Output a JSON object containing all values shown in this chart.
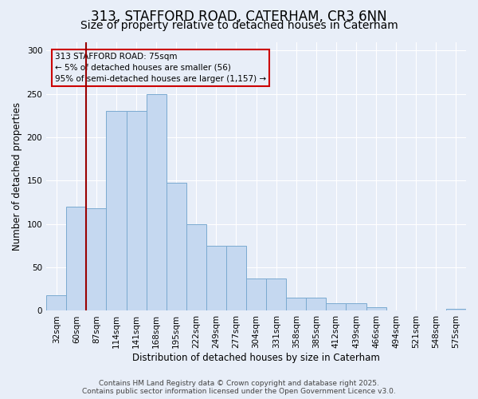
{
  "title": "313, STAFFORD ROAD, CATERHAM, CR3 6NN",
  "subtitle": "Size of property relative to detached houses in Caterham",
  "xlabel": "Distribution of detached houses by size in Caterham",
  "ylabel": "Number of detached properties",
  "categories": [
    "32sqm",
    "60sqm",
    "87sqm",
    "114sqm",
    "141sqm",
    "168sqm",
    "195sqm",
    "222sqm",
    "249sqm",
    "277sqm",
    "304sqm",
    "331sqm",
    "358sqm",
    "385sqm",
    "412sqm",
    "439sqm",
    "466sqm",
    "494sqm",
    "521sqm",
    "548sqm",
    "575sqm"
  ],
  "values": [
    18,
    120,
    118,
    230,
    230,
    250,
    148,
    100,
    75,
    75,
    37,
    37,
    15,
    15,
    9,
    9,
    4,
    0,
    0,
    0,
    2
  ],
  "bar_color": "#c5d8f0",
  "bar_edge_color": "#7aaad0",
  "bg_color": "#e8eef8",
  "grid_color": "#ffffff",
  "vline_x_idx": 2,
  "vline_color": "#990000",
  "annotation_text": "313 STAFFORD ROAD: 75sqm\n← 5% of detached houses are smaller (56)\n95% of semi-detached houses are larger (1,157) →",
  "annotation_box_color": "#cc0000",
  "footer": "Contains HM Land Registry data © Crown copyright and database right 2025.\nContains public sector information licensed under the Open Government Licence v3.0.",
  "ylim": [
    0,
    310
  ],
  "title_fontsize": 12,
  "subtitle_fontsize": 10,
  "axis_label_fontsize": 8.5,
  "tick_fontsize": 7.5,
  "footer_fontsize": 6.5,
  "annotation_fontsize": 7.5
}
